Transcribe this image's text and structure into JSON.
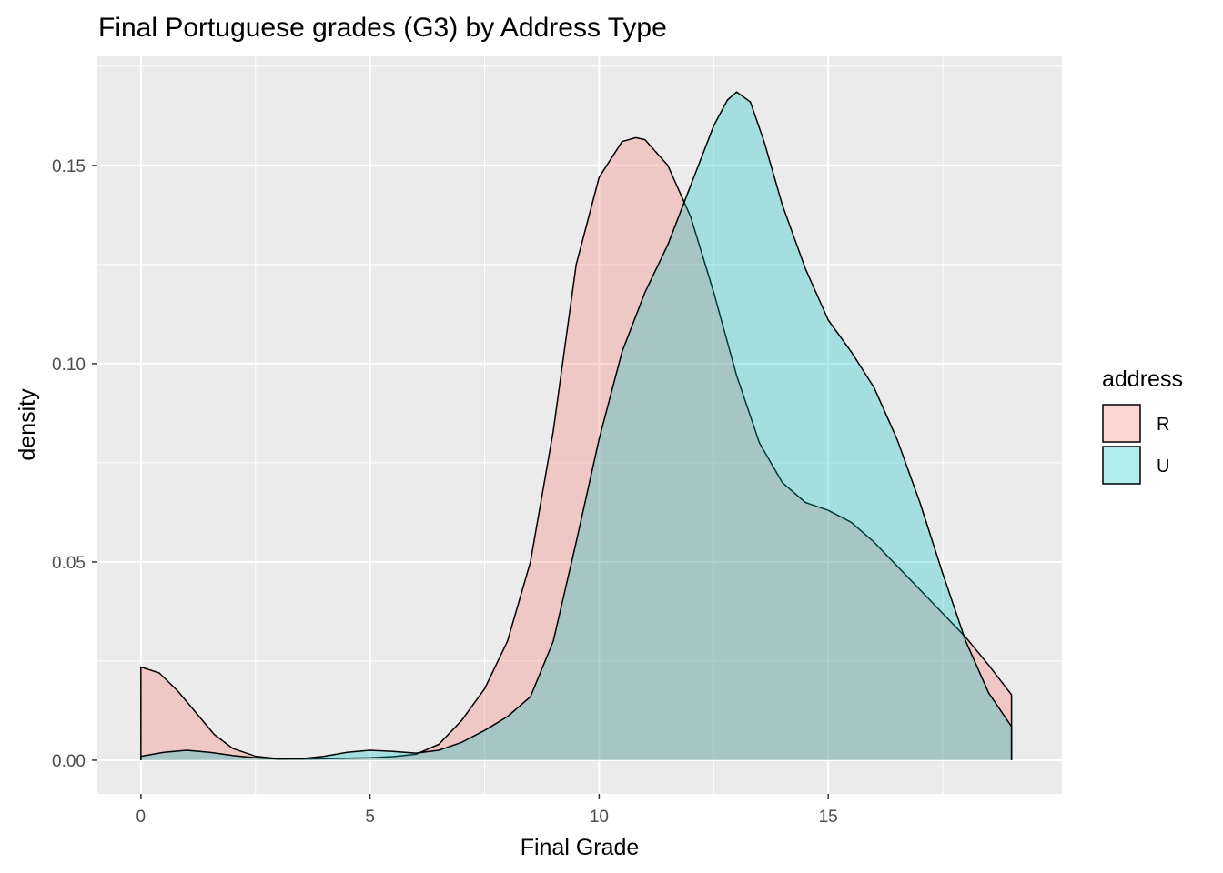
{
  "chart_data": {
    "type": "area",
    "subtype": "density",
    "title": "Final Portuguese grades (G3) by Address Type",
    "xlabel": "Final Grade",
    "ylabel": "density",
    "xlim": [
      -0.95,
      20.1
    ],
    "ylim": [
      -0.0085,
      0.1775
    ],
    "x_ticks": [
      0,
      5,
      10,
      15
    ],
    "x_tick_labels": [
      "0",
      "5",
      "10",
      "15"
    ],
    "y_ticks": [
      0.0,
      0.05,
      0.1,
      0.15
    ],
    "y_tick_labels": [
      "0.00",
      "0.05",
      "0.10",
      "0.15"
    ],
    "grid": true,
    "legend": {
      "title": "address",
      "position": "right"
    },
    "series": [
      {
        "name": "R",
        "fill": "#F8766D",
        "fill_opacity": 0.3,
        "x": [
          0,
          0.4,
          0.8,
          1.2,
          1.6,
          2.0,
          2.5,
          3.0,
          3.5,
          4.0,
          4.5,
          5.0,
          5.5,
          6.0,
          6.5,
          7.0,
          7.5,
          8.0,
          8.5,
          9.0,
          9.5,
          10.0,
          10.5,
          10.8,
          11.0,
          11.5,
          12.0,
          12.5,
          13.0,
          13.5,
          14.0,
          14.5,
          15.0,
          15.5,
          16.0,
          16.5,
          17.0,
          17.5,
          18.0,
          18.5,
          19.0
        ],
        "y": [
          0.0235,
          0.022,
          0.0175,
          0.012,
          0.0065,
          0.003,
          0.001,
          0.0004,
          0.0003,
          0.0004,
          0.0005,
          0.0006,
          0.0009,
          0.0015,
          0.004,
          0.01,
          0.018,
          0.03,
          0.05,
          0.083,
          0.125,
          0.147,
          0.156,
          0.157,
          0.1565,
          0.15,
          0.137,
          0.118,
          0.097,
          0.08,
          0.07,
          0.065,
          0.063,
          0.06,
          0.055,
          0.049,
          0.043,
          0.037,
          0.031,
          0.024,
          0.0165
        ]
      },
      {
        "name": "U",
        "fill": "#00BFC4",
        "fill_opacity": 0.3,
        "x": [
          0,
          0.5,
          1.0,
          1.5,
          2.0,
          2.5,
          3.0,
          3.5,
          4.0,
          4.5,
          5.0,
          5.5,
          6.0,
          6.5,
          7.0,
          7.5,
          8.0,
          8.5,
          9.0,
          9.5,
          10.0,
          10.5,
          11.0,
          11.5,
          12.0,
          12.5,
          12.8,
          13.0,
          13.3,
          13.6,
          14.0,
          14.5,
          15.0,
          15.5,
          16.0,
          16.5,
          17.0,
          17.5,
          18.0,
          18.5,
          19.0
        ],
        "y": [
          0.001,
          0.002,
          0.0025,
          0.002,
          0.0012,
          0.0006,
          0.0003,
          0.0004,
          0.001,
          0.002,
          0.0025,
          0.0022,
          0.0018,
          0.0025,
          0.0045,
          0.0075,
          0.011,
          0.016,
          0.03,
          0.055,
          0.081,
          0.103,
          0.118,
          0.13,
          0.145,
          0.16,
          0.1665,
          0.1685,
          0.166,
          0.156,
          0.14,
          0.124,
          0.111,
          0.103,
          0.094,
          0.081,
          0.065,
          0.047,
          0.03,
          0.017,
          0.0085
        ]
      }
    ]
  }
}
